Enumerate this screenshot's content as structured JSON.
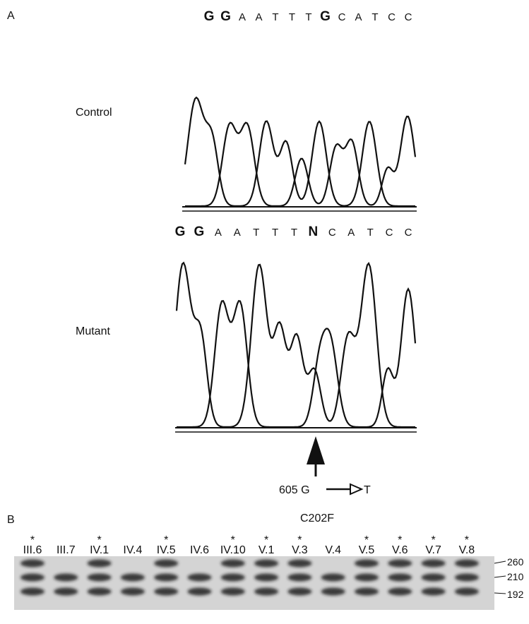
{
  "panel_a": {
    "label": "A",
    "control": {
      "label": "Control",
      "sequence": [
        "G",
        "G",
        "A",
        "A",
        "T",
        "T",
        "T",
        "G",
        "C",
        "A",
        "T",
        "C",
        "C"
      ]
    },
    "mutant": {
      "label": "Mutant",
      "sequence": [
        "G",
        "G",
        "A",
        "A",
        "T",
        "T",
        "T",
        "N",
        "C",
        "A",
        "T",
        "C",
        "C"
      ]
    },
    "mutation": {
      "from": "605 G",
      "to": "T",
      "protein": "C202F"
    }
  },
  "panel_b": {
    "label": "B",
    "lanes": [
      {
        "label": "III.6",
        "mark": "*"
      },
      {
        "label": "III.7"
      },
      {
        "label": "IV.1",
        "mark": "*"
      },
      {
        "label": "IV.4"
      },
      {
        "label": "IV.5",
        "mark": "*"
      },
      {
        "label": "IV.6"
      },
      {
        "label": "IV.10",
        "mark": "*"
      },
      {
        "label": "V.1",
        "mark": "*"
      },
      {
        "label": "V.3",
        "mark": "*"
      },
      {
        "label": "V.4"
      },
      {
        "label": "V.5",
        "mark": "*"
      },
      {
        "label": "V.6",
        "mark": "*"
      },
      {
        "label": "V.7",
        "mark": "*"
      },
      {
        "label": "V.8",
        "mark": "*"
      }
    ],
    "band_sizes": [
      "260",
      "210",
      "192"
    ]
  }
}
